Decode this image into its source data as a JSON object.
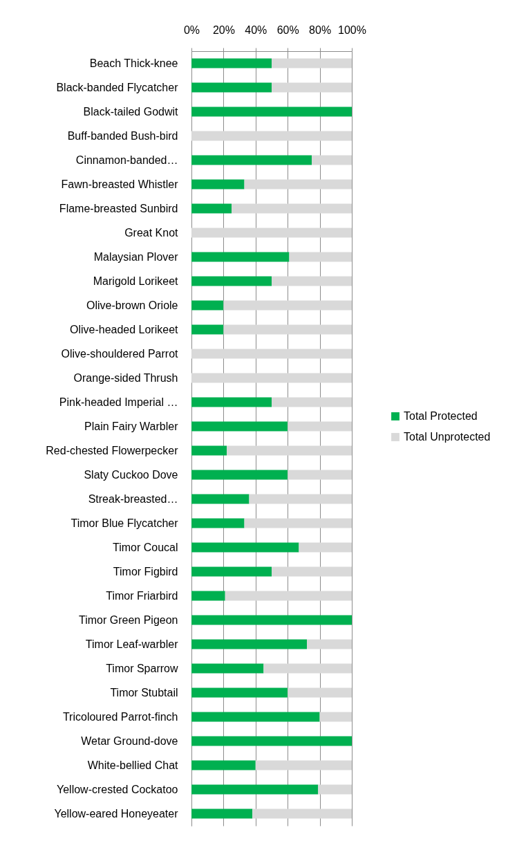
{
  "chart_data": {
    "type": "bar",
    "orientation": "horizontal",
    "stacked": true,
    "categories": [
      "Beach Thick-knee",
      "Black-banded Flycatcher",
      "Black-tailed Godwit",
      "Buff-banded Bush-bird",
      "Cinnamon-banded…",
      "Fawn-breasted Whistler",
      "Flame-breasted Sunbird",
      "Great Knot",
      "Malaysian  Plover",
      "Marigold Lorikeet",
      "Olive-brown Oriole",
      "Olive-headed Lorikeet",
      "Olive-shouldered Parrot",
      "Orange-sided Thrush",
      "Pink-headed Imperial …",
      "Plain Fairy Warbler",
      "Red-chested Flowerpecker",
      "Slaty Cuckoo Dove",
      "Streak-breasted…",
      "Timor Blue Flycatcher",
      "Timor Coucal",
      "Timor Figbird",
      "Timor Friarbird",
      "Timor Green Pigeon",
      "Timor Leaf-warbler",
      "Timor Sparrow",
      "Timor Stubtail",
      "Tricoloured Parrot-finch",
      "Wetar Ground-dove",
      "White-bellied Chat",
      "Yellow-crested Cockatoo",
      "Yellow-eared Honeyeater"
    ],
    "series": [
      {
        "name": "Total Protected",
        "color": "#00b050",
        "values": [
          50,
          50,
          100,
          0,
          75,
          33,
          25,
          0,
          61,
          50,
          20,
          20,
          0,
          0,
          50,
          60,
          22,
          60,
          36,
          33,
          67,
          50,
          21,
          100,
          72,
          45,
          60,
          80,
          100,
          40,
          79,
          38
        ]
      },
      {
        "name": "Total Unprotected",
        "color": "#d9d9d9",
        "values": [
          50,
          50,
          0,
          100,
          25,
          67,
          75,
          100,
          39,
          50,
          80,
          80,
          100,
          100,
          50,
          40,
          78,
          40,
          64,
          67,
          33,
          50,
          79,
          0,
          28,
          55,
          40,
          20,
          0,
          60,
          21,
          62
        ]
      }
    ],
    "xlim": [
      0,
      100
    ],
    "xticks": [
      {
        "value": 0,
        "label": "0%"
      },
      {
        "value": 20,
        "label": "20%"
      },
      {
        "value": 40,
        "label": "40%"
      },
      {
        "value": 60,
        "label": "60%"
      },
      {
        "value": 80,
        "label": "80%"
      },
      {
        "value": 100,
        "label": "100%"
      }
    ],
    "grid": "x",
    "legend": "right"
  }
}
